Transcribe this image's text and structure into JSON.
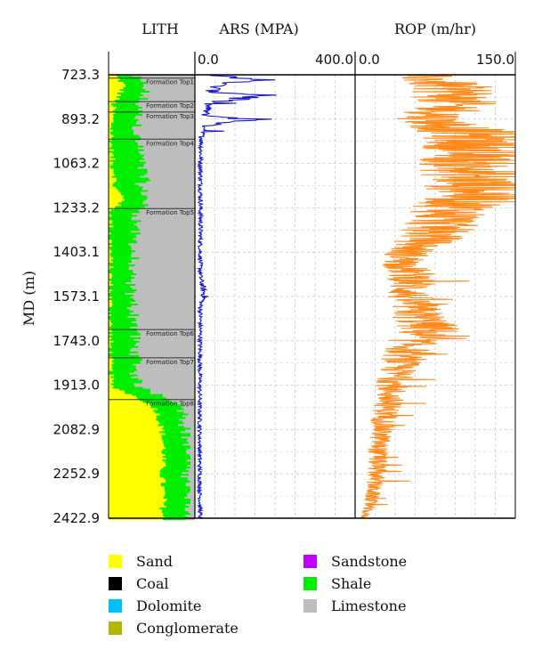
{
  "chart_data": {
    "type": "well-log",
    "ylabel": "MD (m)",
    "y_ticks": [
      723.3,
      893.2,
      1063.2,
      1233.2,
      1403.1,
      1573.1,
      1743.0,
      1913.0,
      2082.9,
      2252.9,
      2422.9
    ],
    "tracks": {
      "lith": {
        "title": "LITH"
      },
      "ars": {
        "title": "ARS (MPA)",
        "scale_min_label": "0.0",
        "scale_max_label": "400.0",
        "xlim": [
          0,
          400
        ],
        "color": "#1a1ad6"
      },
      "rop": {
        "title": "ROP (m/hr)",
        "scale_min_label": "0.0",
        "scale_max_label": "150.0",
        "xlim": [
          0,
          150
        ],
        "color": "#ff8a1a"
      }
    },
    "formation_tops": [
      {
        "name": "Formation Top1",
        "depth": 736
      },
      {
        "name": "Formation Top2",
        "depth": 826
      },
      {
        "name": "Formation Top3",
        "depth": 866
      },
      {
        "name": "Formation Top4",
        "depth": 970
      },
      {
        "name": "Formation Top5",
        "depth": 1236
      },
      {
        "name": "Formation Top6",
        "depth": 1700
      },
      {
        "name": "Formation Top7",
        "depth": 1808
      },
      {
        "name": "Formation Top8",
        "depth": 1968
      }
    ],
    "lithology_profile": {
      "depths": [
        723.3,
        760,
        800,
        826,
        866,
        900,
        970,
        1000,
        1063.2,
        1100,
        1150,
        1200,
        1236,
        1300,
        1350,
        1403.1,
        1450,
        1500,
        1573.1,
        1650,
        1700,
        1743,
        1808,
        1860,
        1913,
        1968,
        2000,
        2082.9,
        2150,
        2252.9,
        2350,
        2422.9
      ],
      "sand_pct": [
        8,
        18,
        12,
        6,
        5,
        4,
        3,
        3,
        4,
        8,
        6,
        20,
        3,
        2,
        2,
        2,
        2,
        2,
        2,
        2,
        2,
        2,
        2,
        2,
        4,
        40,
        55,
        62,
        64,
        62,
        64,
        62
      ],
      "shale_pct": [
        20,
        24,
        28,
        30,
        30,
        30,
        30,
        33,
        34,
        36,
        30,
        26,
        32,
        30,
        28,
        26,
        24,
        22,
        24,
        28,
        30,
        28,
        30,
        28,
        30,
        38,
        32,
        28,
        28,
        30,
        30,
        32
      ]
    },
    "ars_profile": {
      "depths": [
        723.3,
        740,
        760,
        790,
        800,
        830,
        880,
        893.2,
        920,
        1000,
        1063.2,
        1150,
        1233.2,
        1300,
        1403.1,
        1500,
        1573.1,
        1600,
        1743,
        1913,
        2082.9,
        2252.9,
        2422.9
      ],
      "values": [
        40,
        165,
        60,
        40,
        190,
        35,
        25,
        150,
        20,
        15,
        14,
        14,
        14,
        14,
        13,
        14,
        25,
        14,
        13,
        12,
        12,
        12,
        13
      ]
    },
    "rop_profile": {
      "depths": [
        723.3,
        780,
        850,
        893.2,
        950,
        1000,
        1063.2,
        1120,
        1180,
        1233.2,
        1300,
        1350,
        1403.1,
        1450,
        1500,
        1573.1,
        1650,
        1700,
        1743,
        1800,
        1913,
        2000,
        2082.9,
        2150,
        2252.9,
        2350,
        2422.9
      ],
      "values": [
        60,
        95,
        90,
        70,
        110,
        115,
        105,
        110,
        120,
        95,
        80,
        70,
        50,
        45,
        55,
        50,
        60,
        70,
        55,
        45,
        35,
        30,
        25,
        22,
        20,
        15,
        8
      ]
    }
  },
  "legend": {
    "left": [
      {
        "label": "Sand",
        "color": "#ffff00"
      },
      {
        "label": "Coal",
        "color": "#000000"
      },
      {
        "label": "Dolomite",
        "color": "#00bfff"
      },
      {
        "label": "Conglomerate",
        "color": "#b5b500"
      }
    ],
    "right": [
      {
        "label": "Sandstone",
        "color": "#bf00ff"
      },
      {
        "label": "Shale",
        "color": "#00ee00"
      },
      {
        "label": "Limestone",
        "color": "#bdbdbd"
      }
    ]
  }
}
